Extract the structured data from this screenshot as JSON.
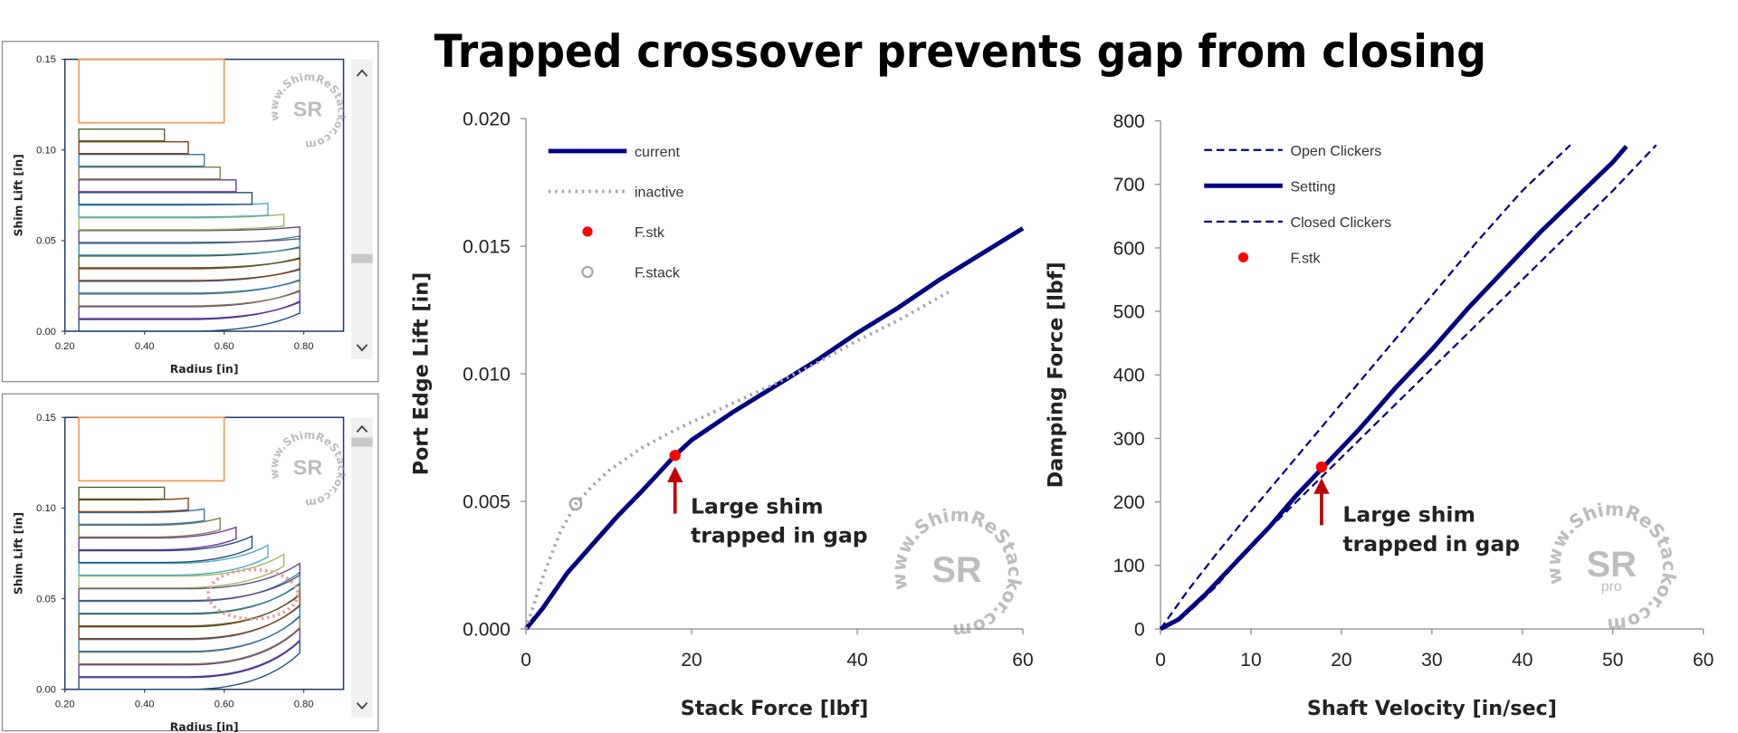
{
  "title": "Trapped crossover prevents gap from closing",
  "watermark": {
    "text": "www.ShimReStackor.com",
    "logo": "SR",
    "badge": "pro"
  },
  "chart_data": [
    {
      "type": "shim",
      "xlabel": "Radius [in]",
      "ylabel": "Shim Lift [in]",
      "xlim": [
        0.2,
        0.9
      ],
      "ylim": [
        0,
        0.15
      ],
      "xticks": [
        {
          "value": 0.2,
          "label": "0.20"
        },
        {
          "value": 0.4,
          "label": "0.40"
        },
        {
          "value": 0.6,
          "label": "0.60"
        },
        {
          "value": 0.8,
          "label": "0.80"
        }
      ],
      "yticks": [
        {
          "value": 0,
          "label": "0.00"
        },
        {
          "value": 0.05,
          "label": "0.05"
        },
        {
          "value": 0.1,
          "label": "0.10"
        },
        {
          "value": 0.15,
          "label": "0.15"
        }
      ],
      "clamp": {
        "inner_radius": 0.235,
        "outer_radius": 0.6,
        "lift": 0.115,
        "color": "#f79646"
      },
      "shim_thickness": 0.0065,
      "shim_colors": [
        "#1f4e79",
        "#7030a0",
        "#7f7f3f",
        "#2e75b6",
        "#843c0c",
        "#4f6228",
        "#31859c",
        "#5f497a",
        "#9bbb59",
        "#4bacc6"
      ],
      "shims": [
        {
          "base": 0.0,
          "radius": 0.79,
          "tip": 0.01
        },
        {
          "base": 0.007,
          "radius": 0.79,
          "tip": 0.016
        },
        {
          "base": 0.014,
          "radius": 0.79,
          "tip": 0.022
        },
        {
          "base": 0.021,
          "radius": 0.79,
          "tip": 0.028
        },
        {
          "base": 0.028,
          "radius": 0.79,
          "tip": 0.034
        },
        {
          "base": 0.035,
          "radius": 0.79,
          "tip": 0.04
        },
        {
          "base": 0.042,
          "radius": 0.79,
          "tip": 0.046
        },
        {
          "base": 0.049,
          "radius": 0.79,
          "tip": 0.051
        },
        {
          "base": 0.056,
          "radius": 0.75,
          "tip": 0.058
        },
        {
          "base": 0.063,
          "radius": 0.71,
          "tip": 0.064
        },
        {
          "base": 0.07,
          "radius": 0.67,
          "tip": 0.07
        },
        {
          "base": 0.077,
          "radius": 0.63,
          "tip": 0.077
        },
        {
          "base": 0.084,
          "radius": 0.59,
          "tip": 0.084
        },
        {
          "base": 0.091,
          "radius": 0.55,
          "tip": 0.091
        },
        {
          "base": 0.098,
          "radius": 0.51,
          "tip": 0.098
        },
        {
          "base": 0.105,
          "radius": 0.45,
          "tip": 0.105
        }
      ]
    },
    {
      "type": "shim",
      "xlabel": "Radius [in]",
      "ylabel": "Shim Lift [in]",
      "xlim": [
        0.2,
        0.9
      ],
      "ylim": [
        0,
        0.15
      ],
      "xticks": [
        {
          "value": 0.2,
          "label": "0.20"
        },
        {
          "value": 0.4,
          "label": "0.40"
        },
        {
          "value": 0.6,
          "label": "0.60"
        },
        {
          "value": 0.8,
          "label": "0.80"
        }
      ],
      "yticks": [
        {
          "value": 0,
          "label": "0.00"
        },
        {
          "value": 0.05,
          "label": "0.05"
        },
        {
          "value": 0.1,
          "label": "0.10"
        },
        {
          "value": 0.15,
          "label": "0.15"
        }
      ],
      "clamp": {
        "inner_radius": 0.235,
        "outer_radius": 0.6,
        "lift": 0.115,
        "color": "#f79646"
      },
      "shim_thickness": 0.0065,
      "shim_colors": [
        "#1f4e79",
        "#7030a0",
        "#7f7f3f",
        "#2e75b6",
        "#843c0c",
        "#4f6228",
        "#31859c",
        "#5f497a",
        "#9bbb59",
        "#4bacc6"
      ],
      "shims": [
        {
          "base": 0.0,
          "radius": 0.79,
          "tip": 0.02
        },
        {
          "base": 0.007,
          "radius": 0.79,
          "tip": 0.027
        },
        {
          "base": 0.014,
          "radius": 0.79,
          "tip": 0.034
        },
        {
          "base": 0.021,
          "radius": 0.79,
          "tip": 0.04
        },
        {
          "base": 0.028,
          "radius": 0.79,
          "tip": 0.046
        },
        {
          "base": 0.035,
          "radius": 0.79,
          "tip": 0.052
        },
        {
          "base": 0.042,
          "radius": 0.79,
          "tip": 0.058
        },
        {
          "base": 0.049,
          "radius": 0.79,
          "tip": 0.063
        },
        {
          "base": 0.056,
          "radius": 0.75,
          "tip": 0.068
        },
        {
          "base": 0.063,
          "radius": 0.71,
          "tip": 0.073
        },
        {
          "base": 0.07,
          "radius": 0.67,
          "tip": 0.078
        },
        {
          "base": 0.077,
          "radius": 0.63,
          "tip": 0.083
        },
        {
          "base": 0.084,
          "radius": 0.59,
          "tip": 0.088
        },
        {
          "base": 0.091,
          "radius": 0.55,
          "tip": 0.093
        },
        {
          "base": 0.098,
          "radius": 0.51,
          "tip": 0.099
        },
        {
          "base": 0.105,
          "radius": 0.45,
          "tip": 0.105
        }
      ]
    },
    {
      "type": "line",
      "xlabel": "Stack Force [lbf]",
      "ylabel": "Port Edge Lift [in]",
      "xlim": [
        0,
        60
      ],
      "ylim": [
        0,
        0.02
      ],
      "xticks": [
        0,
        20,
        40,
        60
      ],
      "yticks": [
        {
          "value": 0,
          "label": "0.000"
        },
        {
          "value": 0.005,
          "label": "0.005"
        },
        {
          "value": 0.01,
          "label": "0.010"
        },
        {
          "value": 0.015,
          "label": "0.015"
        },
        {
          "value": 0.02,
          "label": "0.020"
        }
      ],
      "annotation": [
        "Large shim",
        "trapped in gap"
      ],
      "series": [
        {
          "name": "current",
          "color": "#000080",
          "line_style": "solid",
          "x": [
            0,
            2,
            5,
            8,
            11,
            14,
            16,
            18,
            20,
            25,
            30,
            35,
            40,
            45,
            50,
            55,
            60
          ],
          "values": [
            0,
            0.0008,
            0.0022,
            0.0033,
            0.0044,
            0.0054,
            0.0061,
            0.0068,
            0.0074,
            0.0085,
            0.0095,
            0.0105,
            0.0116,
            0.0126,
            0.0137,
            0.0147,
            0.0157
          ]
        },
        {
          "name": "inactive",
          "color": "#a6a6a6",
          "line_style": "dotted",
          "x": [
            0,
            2,
            4,
            6,
            8,
            10,
            14,
            18,
            22,
            26,
            30,
            35,
            40,
            45,
            51
          ],
          "values": [
            0,
            0.002,
            0.0037,
            0.0049,
            0.0056,
            0.0062,
            0.0071,
            0.0078,
            0.0084,
            0.009,
            0.0096,
            0.0104,
            0.0113,
            0.0121,
            0.0132
          ]
        },
        {
          "name": "F.stk",
          "color": "#ff0000",
          "marker": "filled",
          "x": [
            18
          ],
          "values": [
            0.0068
          ]
        },
        {
          "name": "F.stack",
          "color": "#a6a6a6",
          "marker": "open",
          "x": [
            6
          ],
          "values": [
            0.0049
          ]
        }
      ]
    },
    {
      "type": "line",
      "xlabel": "Shaft Velocity [in/sec]",
      "ylabel": "Damping Force [lbf]",
      "xlim": [
        0,
        60
      ],
      "ylim": [
        0,
        800
      ],
      "xticks": [
        0,
        10,
        20,
        30,
        40,
        50,
        60
      ],
      "yticks": [
        0,
        100,
        200,
        300,
        400,
        500,
        600,
        700,
        800
      ],
      "annotation": [
        "Large shim",
        "trapped in gap"
      ],
      "series": [
        {
          "name": "Open Clickers",
          "color": "#000080",
          "line_style": "dashed",
          "x": [
            0,
            3,
            6,
            10,
            15,
            20,
            25,
            30,
            35,
            40,
            45.3
          ],
          "values": [
            0,
            60,
            115,
            185,
            270,
            355,
            440,
            525,
            610,
            690,
            762
          ]
        },
        {
          "name": "Setting",
          "color": "#000080",
          "line_style": "solid",
          "x": [
            0,
            2,
            5,
            8,
            12,
            15,
            18,
            22,
            26,
            30,
            34,
            38,
            42,
            46,
            50,
            51.5
          ],
          "values": [
            0,
            15,
            55,
            100,
            160,
            210,
            255,
            315,
            380,
            440,
            505,
            565,
            625,
            680,
            735,
            760
          ]
        },
        {
          "name": "Closed Clickers",
          "color": "#000080",
          "line_style": "dashed",
          "x": [
            0,
            3,
            6,
            10,
            15,
            20,
            25,
            30,
            35,
            40,
            45,
            50,
            54.8
          ],
          "values": [
            0,
            25,
            65,
            130,
            200,
            270,
            340,
            410,
            480,
            550,
            620,
            690,
            762
          ]
        },
        {
          "name": "F.stk",
          "color": "#ff0000",
          "marker": "filled",
          "x": [
            17.8
          ],
          "values": [
            255
          ]
        }
      ]
    }
  ]
}
